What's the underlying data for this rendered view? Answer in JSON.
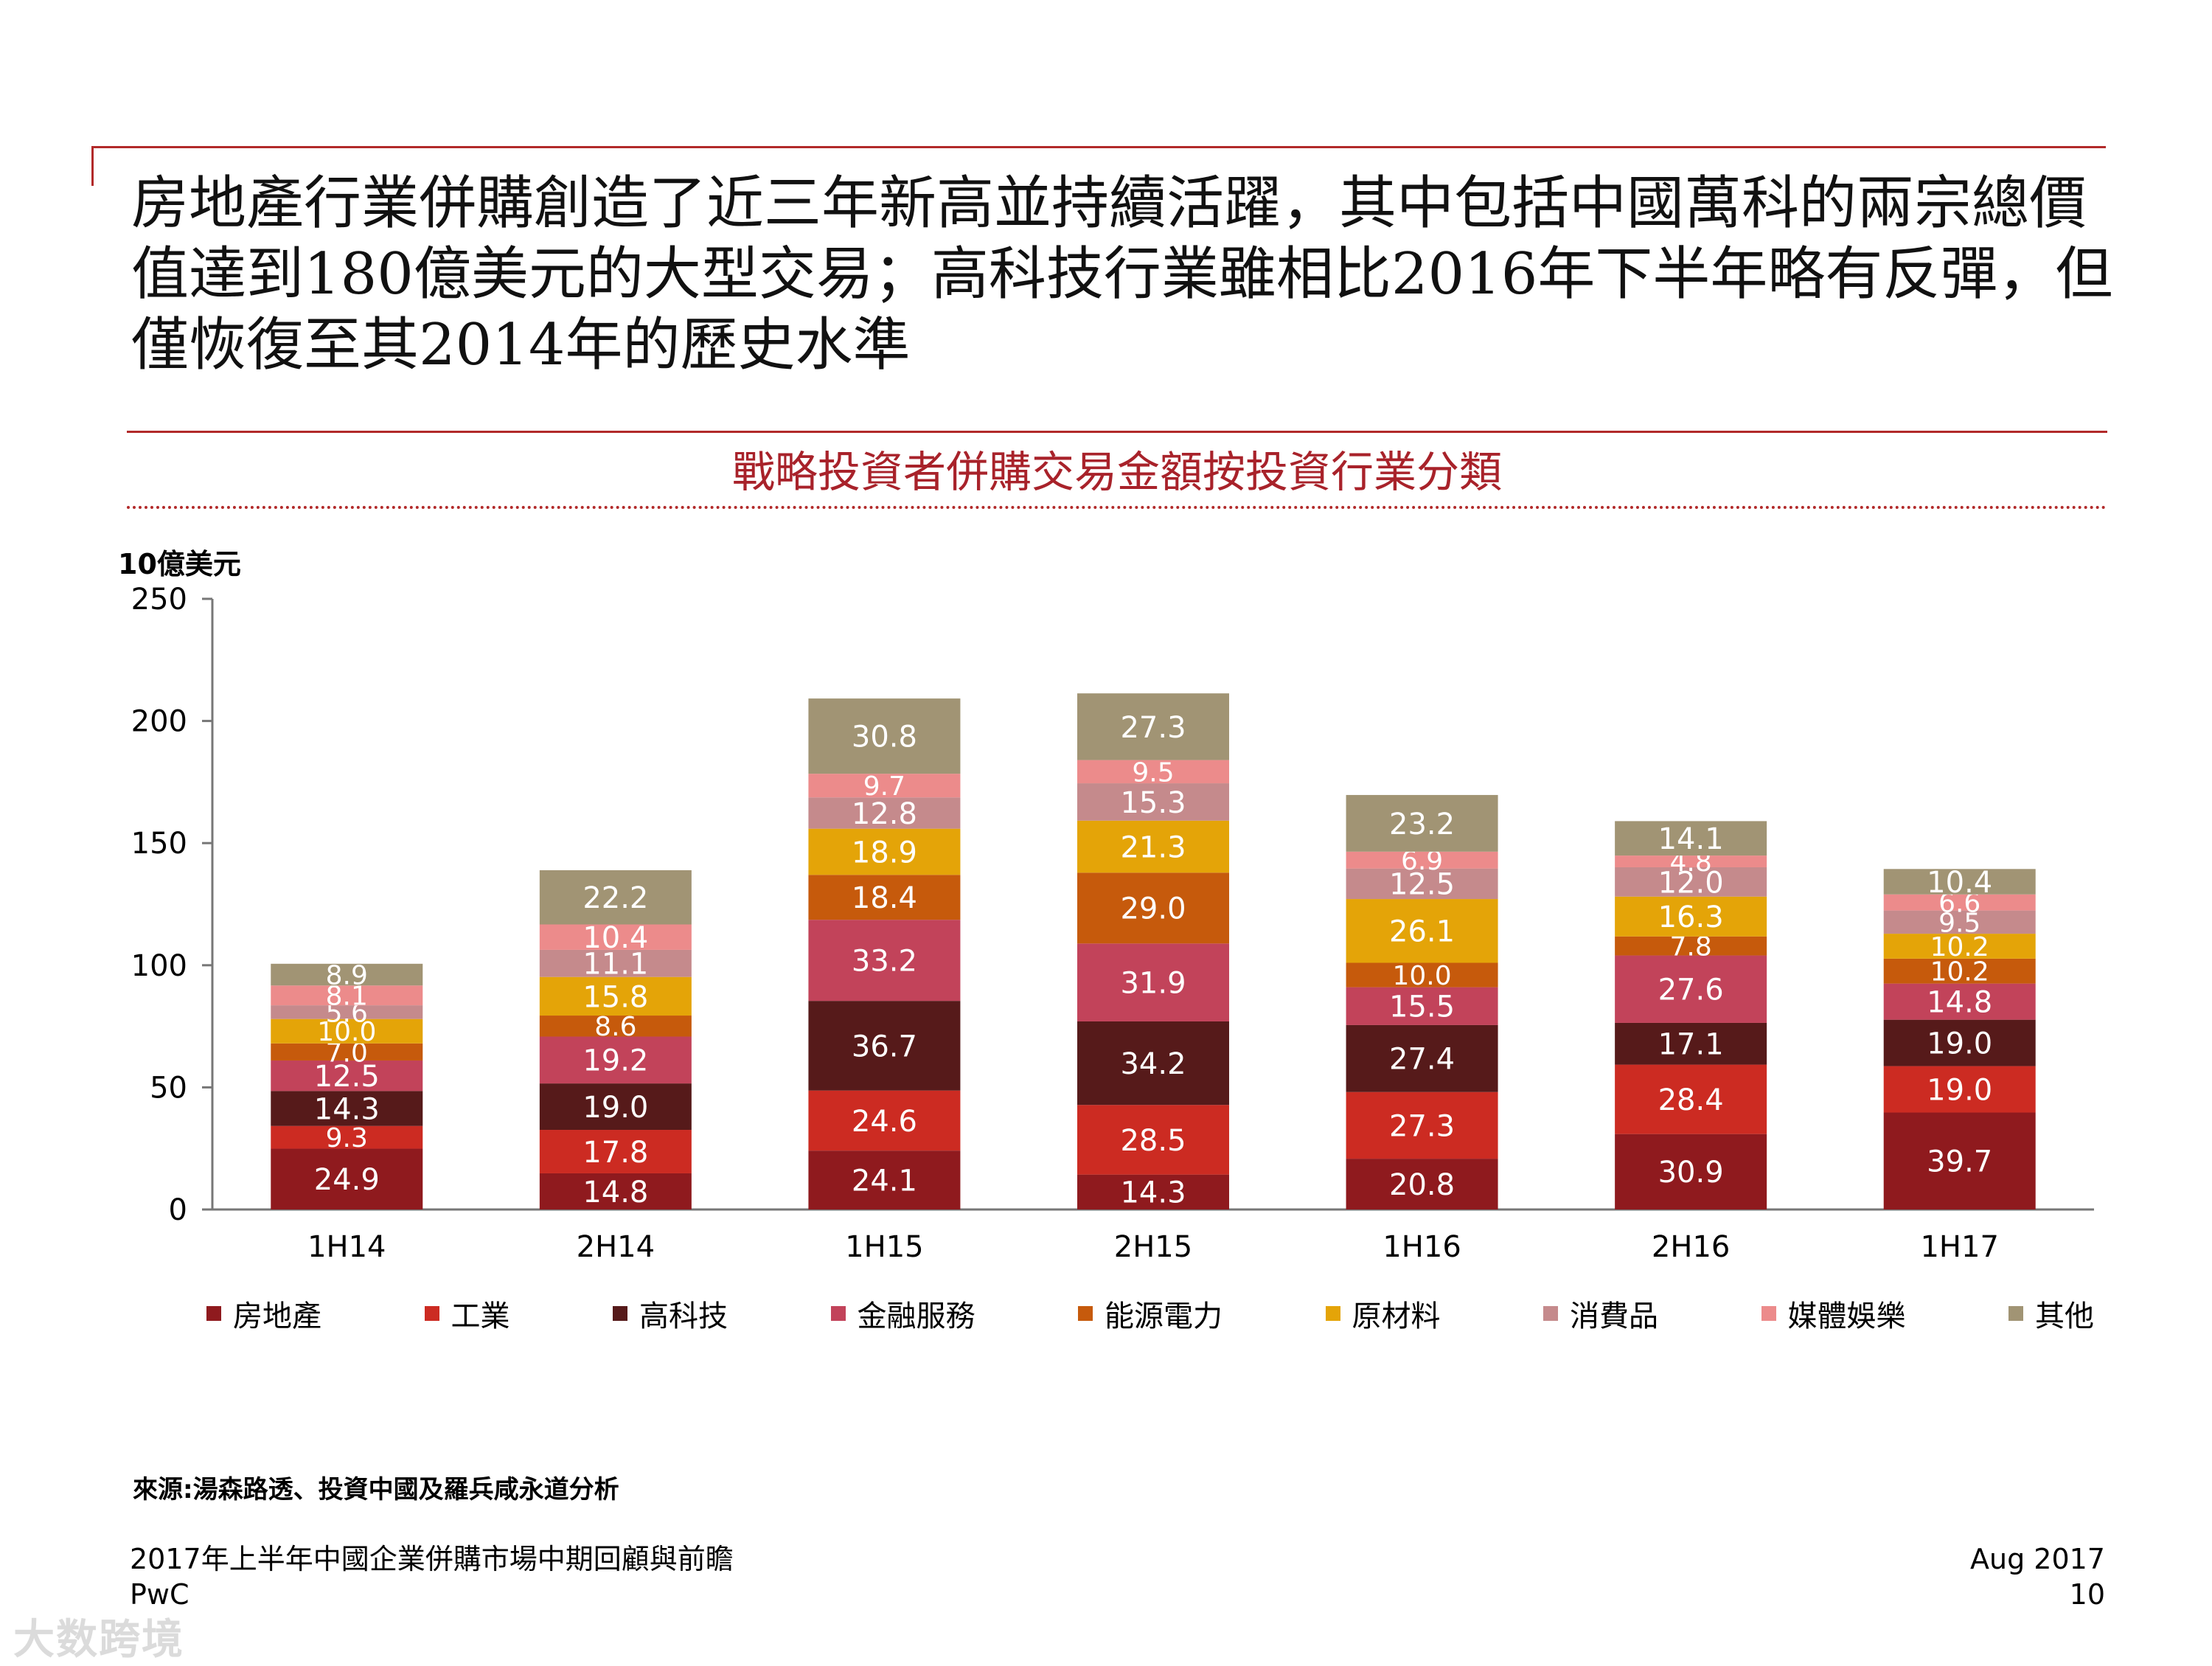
{
  "headline": "房地產行業併購創造了近三年新高並持續活躍，其中包括中國萬科的兩宗總價值達到180億美元的大型交易；高科技行業雖相比2016年下半年略有反彈，但僅恢復至其2014年的歷史水準",
  "chart_title": "戰略投資者併購交易金額按投資行業分類",
  "unit_label": "10億美元",
  "source": "來源:湯森路透、投資中國及羅兵咸永道分析",
  "footer": {
    "report_title": "2017年上半年中國企業併購市場中期回顧與前瞻",
    "org": "PwC",
    "date": "Aug 2017",
    "page": "10"
  },
  "watermark": "大数跨境",
  "chart_data": {
    "type": "bar",
    "stacked": true,
    "categories": [
      "1H14",
      "2H14",
      "1H15",
      "2H15",
      "1H16",
      "2H16",
      "1H17"
    ],
    "ylim": [
      0,
      250
    ],
    "yticks": [
      0,
      50,
      100,
      150,
      200,
      250
    ],
    "ylabel": "10億美元",
    "title": "戰略投資者併購交易金額按投資行業分類",
    "legend_position": "bottom",
    "series": [
      {
        "name": "房地產",
        "color": "#8f1a1e",
        "values": [
          24.9,
          14.8,
          24.1,
          14.3,
          20.8,
          30.9,
          39.7
        ]
      },
      {
        "name": "工業",
        "color": "#cc2b22",
        "values": [
          9.3,
          17.8,
          24.6,
          28.5,
          27.3,
          28.4,
          19.0
        ]
      },
      {
        "name": "高科技",
        "color": "#561a1a",
        "values": [
          14.3,
          19.0,
          36.7,
          34.2,
          27.4,
          17.1,
          19.0
        ]
      },
      {
        "name": "金融服務",
        "color": "#c2435a",
        "values": [
          12.5,
          19.2,
          33.2,
          31.9,
          15.5,
          27.6,
          14.8
        ]
      },
      {
        "name": "能源電力",
        "color": "#c65a0c",
        "values": [
          7.0,
          8.6,
          18.4,
          29.0,
          10.0,
          7.8,
          10.2
        ]
      },
      {
        "name": "原材料",
        "color": "#e4a408",
        "values": [
          10.0,
          15.8,
          18.9,
          21.3,
          26.1,
          16.3,
          10.2
        ]
      },
      {
        "name": "消費品",
        "color": "#c58a8c",
        "values": [
          5.6,
          11.1,
          12.8,
          15.3,
          12.5,
          12.0,
          9.5
        ]
      },
      {
        "name": "媒體娛樂",
        "color": "#ec8b8b",
        "values": [
          8.1,
          10.4,
          9.7,
          9.5,
          6.9,
          4.8,
          6.6
        ]
      },
      {
        "name": "其他",
        "color": "#a19474",
        "values": [
          8.9,
          22.2,
          30.8,
          27.3,
          23.2,
          14.1,
          10.4
        ]
      }
    ]
  }
}
